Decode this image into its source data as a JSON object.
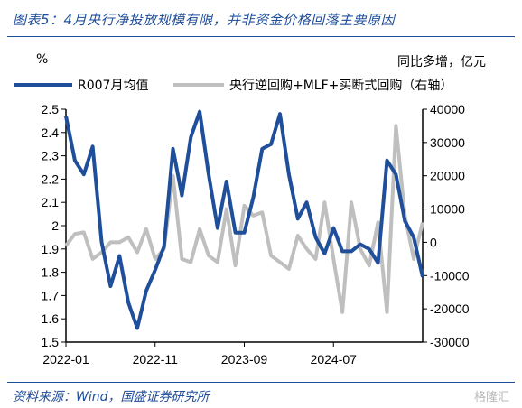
{
  "header": {
    "title": "图表5：4月央行净投放规模有限，并非资金价格回落主要原因"
  },
  "footer": {
    "source": "资料来源：Wind，国盛证券研究所",
    "watermark": "格隆汇"
  },
  "units": {
    "left": "%",
    "right": "同比多增，亿元"
  },
  "colors": {
    "series1": "#1f4e9a",
    "series2": "#bfbfbf",
    "accent": "#1f4e9a"
  },
  "chart_data": {
    "type": "line",
    "title": "图表5：4月央行净投放规模有限，并非资金价格回落主要原因",
    "xlabel": "",
    "ylabel": "%",
    "y2label": "同比多增，亿元",
    "x_tick_labels": [
      "2022-01",
      "2022-11",
      "2023-09",
      "2024-07"
    ],
    "x_tick_positions": [
      0,
      10,
      20,
      30
    ],
    "ylim": [
      1.5,
      2.5
    ],
    "yticks": [
      1.5,
      1.6,
      1.7,
      1.8,
      1.9,
      2.0,
      2.1,
      2.2,
      2.3,
      2.4,
      2.5
    ],
    "ytick_labels": [
      "1.5",
      "1.6",
      "1.7",
      "1.8",
      "1.9",
      "2",
      "2.1",
      "2.2",
      "2.3",
      "2.4",
      "2.5"
    ],
    "y2lim": [
      -30000,
      40000
    ],
    "y2ticks": [
      -30000,
      -20000,
      -10000,
      0,
      10000,
      20000,
      30000,
      40000
    ],
    "grid": false,
    "legend_position": "top",
    "series": [
      {
        "name": "R007月均值",
        "axis": "left",
        "values": [
          2.47,
          2.28,
          2.22,
          2.34,
          1.93,
          1.74,
          1.87,
          1.67,
          1.56,
          1.72,
          1.81,
          1.91,
          2.33,
          2.13,
          2.38,
          2.49,
          2.22,
          1.99,
          2.19,
          1.97,
          1.97,
          2.12,
          2.33,
          2.35,
          2.48,
          2.22,
          2.03,
          2.1,
          1.95,
          1.88,
          1.99,
          1.89,
          1.89,
          1.92,
          1.9,
          1.84,
          2.28,
          2.22,
          2.02,
          1.95,
          1.78
        ]
      },
      {
        "name": "央行逆回购+MLF+买断式回购（右轴）",
        "axis": "right",
        "values": [
          -1000,
          2500,
          3000,
          -5000,
          -3000,
          0,
          0,
          1500,
          -3000,
          4000,
          -5000,
          -2000,
          20000,
          -5000,
          -6000,
          4000,
          -4000,
          -6000,
          10000,
          -7000,
          11000,
          8000,
          9000,
          -4000,
          -6000,
          -8000,
          2000,
          -2000,
          -5000,
          12000,
          -5000,
          -21000,
          12000,
          -2000,
          -7000,
          6000,
          -21000,
          35000,
          8000,
          -5000,
          6000
        ]
      }
    ]
  }
}
